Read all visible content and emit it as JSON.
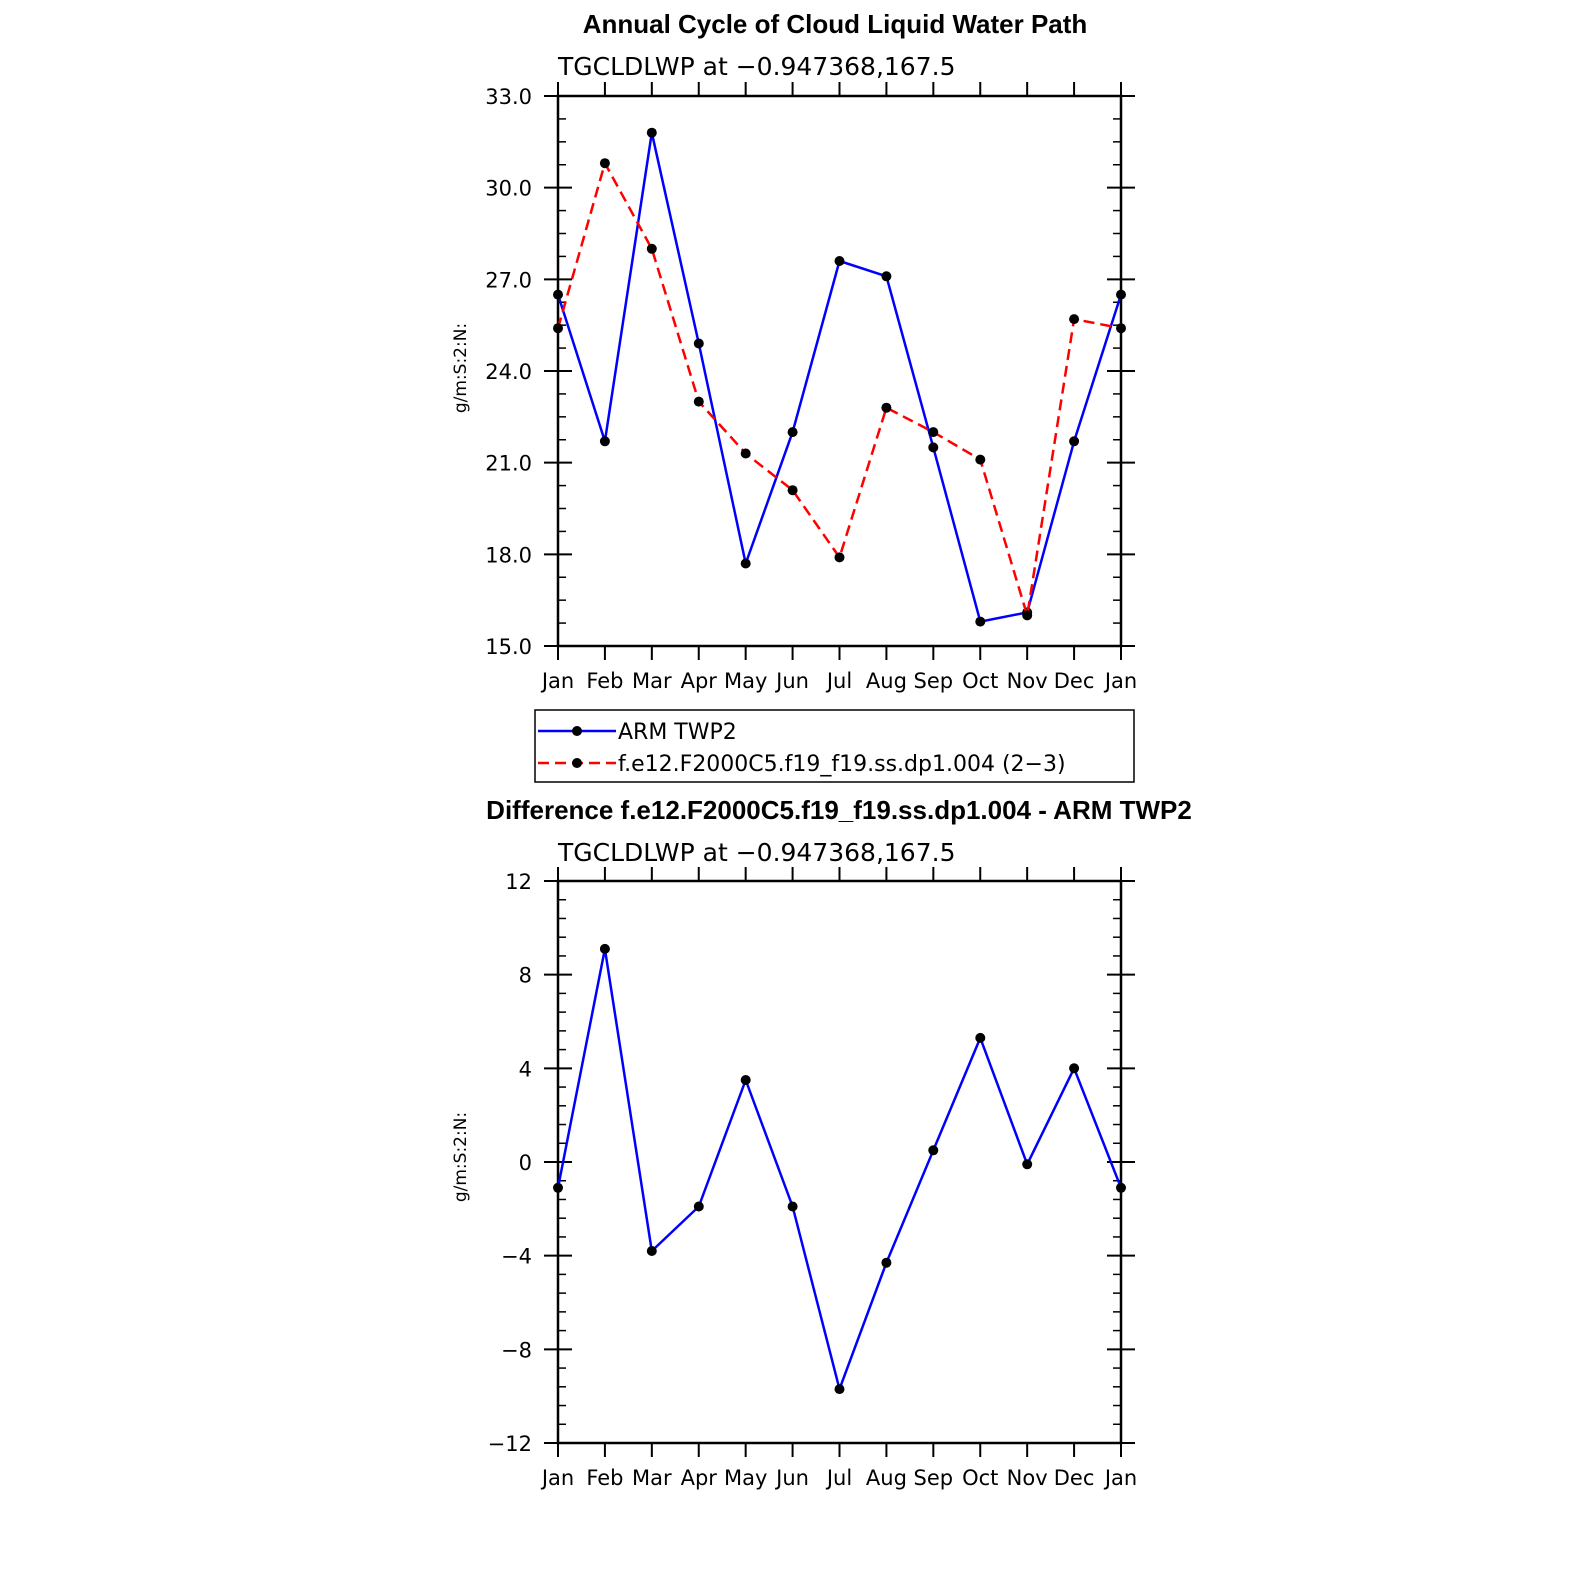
{
  "chart_data": [
    {
      "type": "line",
      "title": "Annual Cycle of Cloud Liquid Water Path",
      "subtitle": "TGCLDLWP  at  −0.947368,167.5",
      "ylabel": "g/m:S:2:N:",
      "ylim": [
        15.0,
        33.0
      ],
      "yticks": [
        15.0,
        18.0,
        21.0,
        24.0,
        27.0,
        30.0,
        33.0
      ],
      "ytick_labels": [
        "15.0",
        "18.0",
        "21.0",
        "24.0",
        "27.0",
        "30.0",
        "33.0"
      ],
      "categories": [
        "Jan",
        "Feb",
        "Mar",
        "Apr",
        "May",
        "Jun",
        "Jul",
        "Aug",
        "Sep",
        "Oct",
        "Nov",
        "Dec",
        "Jan"
      ],
      "grid": false,
      "legend_position": "below",
      "series": [
        {
          "name": "ARM  TWP2",
          "color": "#0000ff",
          "dash": "solid",
          "values": [
            26.5,
            21.7,
            31.8,
            24.9,
            17.7,
            22.0,
            27.6,
            27.1,
            21.5,
            15.8,
            16.1,
            21.7,
            26.5
          ]
        },
        {
          "name": "f.e12.F2000C5.f19_f19.ss.dp1.004  (2−3)",
          "color": "#ff0000",
          "dash": "dashed",
          "values": [
            25.4,
            30.8,
            28.0,
            23.0,
            21.3,
            20.1,
            17.9,
            22.8,
            22.0,
            21.1,
            16.0,
            25.7,
            25.4
          ]
        }
      ]
    },
    {
      "type": "line",
      "title": "Difference f.e12.F2000C5.f19_f19.ss.dp1.004 - ARM TWP2",
      "subtitle": "TGCLDLWP  at  −0.947368,167.5",
      "ylabel": "g/m:S:2:N:",
      "ylim": [
        -12,
        12
      ],
      "yticks": [
        -12,
        -8,
        -4,
        0,
        4,
        8,
        12
      ],
      "ytick_labels": [
        "−12",
        "−8",
        "−4",
        "0",
        "4",
        "8",
        "12"
      ],
      "categories": [
        "Jan",
        "Feb",
        "Mar",
        "Apr",
        "May",
        "Jun",
        "Jul",
        "Aug",
        "Sep",
        "Oct",
        "Nov",
        "Dec",
        "Jan"
      ],
      "grid": false,
      "series": [
        {
          "color": "#0000ff",
          "dash": "solid",
          "values": [
            -1.1,
            9.1,
            -3.8,
            -1.9,
            3.5,
            -1.9,
            -9.7,
            -4.3,
            0.5,
            5.3,
            -0.1,
            4.0,
            -1.1
          ]
        }
      ]
    }
  ]
}
